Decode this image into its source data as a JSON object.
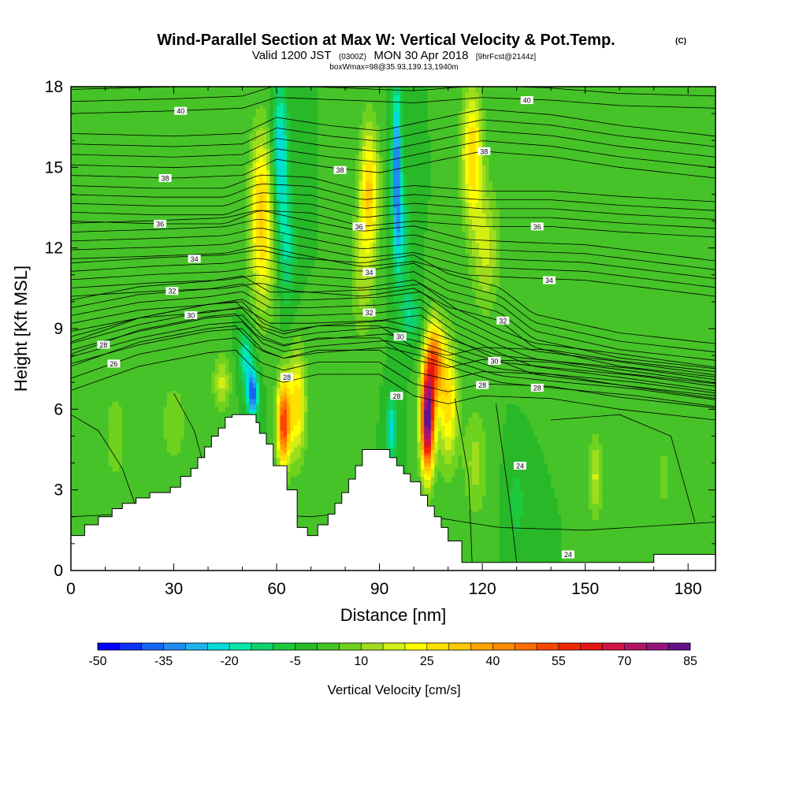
{
  "header": {
    "title": "Wind-Parallel Section at Max W: Vertical Velocity & Pot.Temp.",
    "copyright": "(C)",
    "valid_prefix": "Valid 1200 JST",
    "valid_utc": "(0300Z)",
    "valid_date": "MON 30 Apr 2018",
    "forecast_info": "[9hrFcst@2144z]",
    "box_info": "boxWmax=98@35.93,139.13,1940m"
  },
  "chart_data": {
    "type": "heatmap",
    "title": "Wind-Parallel Section at Max W: Vertical Velocity & Pot.Temp.",
    "xlabel": "Distance [nm]",
    "ylabel": "Height [Kft MSL]",
    "xlim": [
      0,
      188
    ],
    "ylim": [
      0,
      18
    ],
    "xticks": [
      "0",
      "30",
      "60",
      "90",
      "120",
      "150",
      "180"
    ],
    "yticks": [
      "0",
      "3",
      "6",
      "9",
      "12",
      "15",
      "18"
    ],
    "colorbar": {
      "label": "Vertical Velocity [cm/s]",
      "tick_labels": [
        "-50",
        "-35",
        "-20",
        "-5",
        "10",
        "25",
        "40",
        "55",
        "70",
        "85"
      ],
      "levels": [
        -50,
        -45,
        -40,
        -35,
        -30,
        -25,
        -20,
        -15,
        -10,
        -5,
        0,
        5,
        10,
        15,
        20,
        25,
        30,
        35,
        40,
        45,
        50,
        55,
        60,
        65,
        70,
        75,
        80,
        85
      ],
      "colors": [
        "#0000ff",
        "#0a32fa",
        "#1464f5",
        "#1e8cf0",
        "#1eb4ee",
        "#00dcd8",
        "#00e8a8",
        "#10d070",
        "#1ec83c",
        "#28b828",
        "#46c328",
        "#6ed21e",
        "#a0dc1e",
        "#d2f014",
        "#ffff00",
        "#ffe100",
        "#ffc800",
        "#ffa500",
        "#ff8c00",
        "#ff6e00",
        "#fa4600",
        "#f02800",
        "#e61414",
        "#d21446",
        "#b41464",
        "#961478",
        "#64128c"
      ]
    },
    "vertical_velocity_features": [
      {
        "x": 55.5,
        "y": 14,
        "value": 25,
        "sx": 3.2,
        "sy": 2.6
      },
      {
        "x": 56,
        "y": 11.5,
        "value": 15,
        "sx": 4,
        "sy": 2.5
      },
      {
        "x": 62,
        "y": 5.5,
        "value": 55,
        "sx": 1.9,
        "sy": 1.6
      },
      {
        "x": 66,
        "y": 6.2,
        "value": 28,
        "sx": 2.5,
        "sy": 2.0
      },
      {
        "x": 53,
        "y": 6.6,
        "value": -40,
        "sx": 1.7,
        "sy": 0.9
      },
      {
        "x": 51,
        "y": 8.0,
        "value": -20,
        "sx": 2.0,
        "sy": 1.0
      },
      {
        "x": 61,
        "y": 15.5,
        "value": -25,
        "sx": 2.2,
        "sy": 2.8
      },
      {
        "x": 63,
        "y": 12.0,
        "value": -15,
        "sx": 2.5,
        "sy": 2.2
      },
      {
        "x": 87,
        "y": 14.2,
        "value": 30,
        "sx": 2.8,
        "sy": 2.4
      },
      {
        "x": 85,
        "y": 11.0,
        "value": 12,
        "sx": 3.5,
        "sy": 2.5
      },
      {
        "x": 95,
        "y": 15,
        "value": -35,
        "sx": 1.4,
        "sy": 3.2
      },
      {
        "x": 96.5,
        "y": 12.5,
        "value": -15,
        "sx": 2.2,
        "sy": 2.0
      },
      {
        "x": 93.5,
        "y": 5.3,
        "value": -22,
        "sx": 1.5,
        "sy": 1.2
      },
      {
        "x": 104,
        "y": 5.6,
        "value": 85,
        "sx": 2.0,
        "sy": 1.9
      },
      {
        "x": 106,
        "y": 7.8,
        "value": 45,
        "sx": 2.5,
        "sy": 1.5
      },
      {
        "x": 110,
        "y": 6.3,
        "value": 28,
        "sx": 2.8,
        "sy": 2.3
      },
      {
        "x": 117,
        "y": 15.5,
        "value": 30,
        "sx": 3.0,
        "sy": 2.5
      },
      {
        "x": 121,
        "y": 12.0,
        "value": 16,
        "sx": 4.0,
        "sy": 2.3
      },
      {
        "x": 99,
        "y": 9.5,
        "value": -15,
        "sx": 3.0,
        "sy": 1.0
      },
      {
        "x": 118,
        "y": 4.0,
        "value": 12,
        "sx": 3.5,
        "sy": 2.0
      },
      {
        "x": 130,
        "y": 2.5,
        "value": -8,
        "sx": 2.5,
        "sy": 1.5
      },
      {
        "x": 153,
        "y": 3.5,
        "value": 16,
        "sx": 2.0,
        "sy": 1.5
      },
      {
        "x": 13,
        "y": 5.0,
        "value": 8,
        "sx": 3.5,
        "sy": 2.0
      },
      {
        "x": 30,
        "y": 5.5,
        "value": 10,
        "sx": 3.5,
        "sy": 1.5
      },
      {
        "x": 173,
        "y": 3.5,
        "value": 6,
        "sx": 3.0,
        "sy": 2.0
      },
      {
        "x": 44,
        "y": 7.0,
        "value": 16,
        "sx": 2.5,
        "sy": 1.0
      },
      {
        "x": 135,
        "y": 9.0,
        "value": 4,
        "sx": 4.0,
        "sy": 1.5
      },
      {
        "x": 175,
        "y": 12.0,
        "value": 5,
        "sx": 5.0,
        "sy": 3.0
      }
    ],
    "background_velocity": 0,
    "potential_temperature_contours": [
      {
        "theta": 24,
        "labels": [
          {
            "x": 131,
            "y": 3.9,
            "text": "24"
          },
          {
            "x": 145,
            "y": 0.6,
            "text": "24"
          }
        ]
      },
      {
        "theta": 26,
        "labels": [
          {
            "x": 12.5,
            "y": 7.7,
            "text": "26"
          }
        ]
      },
      {
        "theta": 28,
        "labels": [
          {
            "x": 9.5,
            "y": 8.4,
            "text": "28"
          },
          {
            "x": 63,
            "y": 7.2,
            "text": "28"
          },
          {
            "x": 95,
            "y": 6.5,
            "text": "28"
          },
          {
            "x": 120,
            "y": 6.9,
            "text": "28"
          },
          {
            "x": 136,
            "y": 6.8,
            "text": "28"
          }
        ]
      },
      {
        "theta": 30,
        "labels": [
          {
            "x": 35,
            "y": 9.5,
            "text": "30"
          },
          {
            "x": 96,
            "y": 8.7,
            "text": "30"
          },
          {
            "x": 123.5,
            "y": 7.8,
            "text": "30"
          }
        ]
      },
      {
        "theta": 32,
        "labels": [
          {
            "x": 29.5,
            "y": 10.4,
            "text": "32"
          },
          {
            "x": 87,
            "y": 9.6,
            "text": "32"
          },
          {
            "x": 126,
            "y": 9.3,
            "text": "32"
          }
        ]
      },
      {
        "theta": 34,
        "labels": [
          {
            "x": 36,
            "y": 11.6,
            "text": "34"
          },
          {
            "x": 87,
            "y": 11.1,
            "text": "34"
          },
          {
            "x": 139.5,
            "y": 10.8,
            "text": "34"
          }
        ]
      },
      {
        "theta": 36,
        "labels": [
          {
            "x": 26,
            "y": 12.9,
            "text": "36"
          },
          {
            "x": 84,
            "y": 12.8,
            "text": "36"
          },
          {
            "x": 136,
            "y": 12.8,
            "text": "36"
          }
        ]
      },
      {
        "theta": 38,
        "labels": [
          {
            "x": 27.5,
            "y": 14.6,
            "text": "38"
          },
          {
            "x": 78.5,
            "y": 14.9,
            "text": "38"
          },
          {
            "x": 120.5,
            "y": 15.6,
            "text": "38"
          }
        ]
      },
      {
        "theta": 40,
        "labels": [
          {
            "x": 32,
            "y": 17.1,
            "text": "40"
          },
          {
            "x": 133,
            "y": 17.5,
            "text": "40"
          }
        ]
      }
    ],
    "terrain_top_kft": [
      1.3,
      1.3,
      1.3,
      1.3,
      1.7,
      1.7,
      1.7,
      1.7,
      2.0,
      2.0,
      2.0,
      2.0,
      2.3,
      2.3,
      2.3,
      2.5,
      2.5,
      2.5,
      2.5,
      2.7,
      2.7,
      2.7,
      2.7,
      2.9,
      2.9,
      2.9,
      2.9,
      2.9,
      2.9,
      3.1,
      3.1,
      3.1,
      3.5,
      3.5,
      3.5,
      3.8,
      3.8,
      4.2,
      4.2,
      4.6,
      4.6,
      5.0,
      5.0,
      5.3,
      5.3,
      5.7,
      5.7,
      5.8,
      5.8,
      5.8,
      5.8,
      5.8,
      5.8,
      5.8,
      5.5,
      5.1,
      5.1,
      4.7,
      4.7,
      3.9,
      3.9,
      3.9,
      3.9,
      3.0,
      3.0,
      3.0,
      1.6,
      1.6,
      1.6,
      1.3,
      1.3,
      1.3,
      1.7,
      1.7,
      1.7,
      2.1,
      2.1,
      2.5,
      2.5,
      2.9,
      2.9,
      3.4,
      3.4,
      3.9,
      3.9,
      4.5,
      4.5,
      4.5,
      4.5,
      4.5,
      4.5,
      4.5,
      4.5,
      4.2,
      4.2,
      3.9,
      3.9,
      3.6,
      3.6,
      3.3,
      3.3,
      3.3,
      2.8,
      2.8,
      2.4,
      2.4,
      2.0,
      2.0,
      1.6,
      1.6,
      1.1,
      1.1,
      1.1,
      1.1,
      0.3,
      0.3,
      0.3,
      0.3,
      0.3,
      0.3,
      0.3,
      0.3,
      0.3,
      0.3,
      0.3,
      0.3,
      0.3,
      0.3,
      0.3,
      0.3,
      0.3,
      0.3,
      0.3,
      0.3,
      0.3,
      0.3,
      0.3,
      0.3,
      0.3,
      0.3,
      0.3,
      0.3,
      0.3,
      0.3,
      0.3,
      0.3,
      0.3,
      0.3,
      0.3,
      0.3,
      0.3,
      0.3,
      0.3,
      0.3,
      0.3,
      0.3,
      0.3,
      0.3,
      0.3,
      0.3,
      0.3,
      0.3,
      0.3,
      0.3,
      0.3,
      0.3,
      0.3,
      0.3,
      0.3,
      0.3,
      0.6,
      0.6,
      0.6,
      0.6,
      0.6,
      0.6,
      0.6,
      0.6,
      0.6,
      0.6,
      0.6,
      0.6,
      0.6,
      0.6,
      0.6,
      0.6,
      0.6,
      0.6,
      0.6,
      0.6,
      0.6
    ]
  }
}
